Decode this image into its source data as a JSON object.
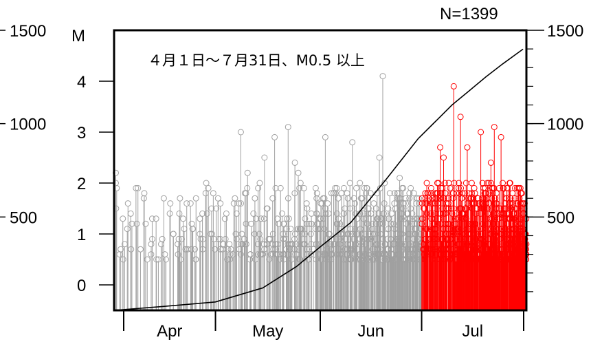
{
  "chart_data": {
    "type": "stem",
    "title": "４月１日～７月31日、M0.5 以上",
    "count_label": "N=1399",
    "magnitude_axis": {
      "label": "M",
      "range": [
        -0.5,
        5.0
      ],
      "ticks": [
        "0",
        "1",
        "2",
        "3",
        "4"
      ]
    },
    "count_axis": {
      "range": [
        0,
        1500
      ],
      "ticks": [
        "500",
        "1000",
        "1500"
      ]
    },
    "x_axis": {
      "range": [
        "2000-04-01",
        "2000-07-31"
      ],
      "months": [
        "Apr",
        "May",
        "Jun",
        "Jul"
      ]
    },
    "colors": {
      "before": "#a0a0a0",
      "recent": "#ff0000",
      "cumulative": "#000000"
    },
    "recent_from": "2000-07-01",
    "cumulative": {
      "x": [
        "2000-04-01",
        "2000-04-15",
        "2000-05-01",
        "2000-05-15",
        "2000-05-25",
        "2000-06-01",
        "2000-06-10",
        "2000-06-20",
        "2000-06-30",
        "2000-07-05",
        "2000-07-10",
        "2000-07-15",
        "2000-07-20",
        "2000-07-25",
        "2000-07-31"
      ],
      "y": [
        0,
        20,
        45,
        120,
        235,
        340,
        470,
        690,
        920,
        1010,
        1100,
        1175,
        1250,
        1320,
        1399
      ]
    },
    "notable_events": {
      "x": [
        "2000-04-01",
        "2000-04-01",
        "2000-04-20",
        "2000-04-22",
        "2000-04-28",
        "2000-05-08",
        "2000-05-10",
        "2000-05-15",
        "2000-05-18",
        "2000-05-22",
        "2000-05-24",
        "2000-05-25",
        "2000-06-02",
        "2000-06-10",
        "2000-06-18",
        "2000-06-19",
        "2000-06-24",
        "2000-07-06",
        "2000-07-07",
        "2000-07-10",
        "2000-07-12",
        "2000-07-14",
        "2000-07-18",
        "2000-07-21",
        "2000-07-22",
        "2000-07-24"
      ],
      "magnitude": [
        2.2,
        2.0,
        1.7,
        1.6,
        1.4,
        3.0,
        2.2,
        2.5,
        2.9,
        3.1,
        2.4,
        2.2,
        2.9,
        2.8,
        2.5,
        4.1,
        2.1,
        2.7,
        2.5,
        3.9,
        3.3,
        2.7,
        3.0,
        2.4,
        3.1,
        2.9
      ]
    }
  }
}
